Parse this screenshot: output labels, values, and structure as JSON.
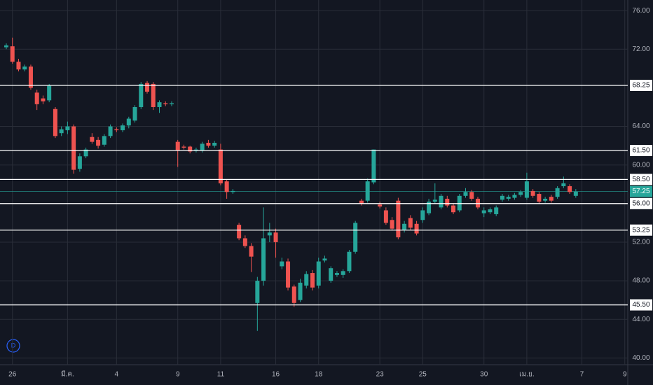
{
  "chart_data": {
    "type": "candlestick",
    "interval_badge": "D",
    "up_color": "#26a69a",
    "down_color": "#ef5350",
    "grid": true,
    "ylim": [
      39.3,
      77.1
    ],
    "yticks": [
      {
        "value": 40,
        "label": "40.00"
      },
      {
        "value": 44,
        "label": "44.00"
      },
      {
        "value": 48,
        "label": "48.00"
      },
      {
        "value": 52,
        "label": "52.00"
      },
      {
        "value": 56,
        "label": "56.00"
      },
      {
        "value": 60,
        "label": "60.00"
      },
      {
        "value": 64,
        "label": "64.00"
      },
      {
        "value": 72,
        "label": "72.00"
      },
      {
        "value": 76,
        "label": "76.00"
      }
    ],
    "levels": [
      {
        "value": 68.25,
        "label": "68.25"
      },
      {
        "value": 61.5,
        "label": "61.50"
      },
      {
        "value": 58.5,
        "label": "58.50"
      },
      {
        "value": 56,
        "label": "56.00"
      },
      {
        "value": 53.25,
        "label": "53.25"
      },
      {
        "value": 45.5,
        "label": "45.50"
      }
    ],
    "last_price": {
      "value": 57.25,
      "label": "57.25"
    },
    "categories": [
      null,
      "26",
      null,
      null,
      null,
      null,
      null,
      null,
      null,
      null,
      "มี.ค.",
      null,
      null,
      null,
      null,
      null,
      null,
      null,
      "4",
      null,
      null,
      null,
      null,
      null,
      null,
      null,
      null,
      null,
      "9",
      null,
      null,
      null,
      null,
      null,
      null,
      "11",
      null,
      null,
      null,
      null,
      null,
      null,
      null,
      null,
      "16",
      null,
      null,
      null,
      null,
      null,
      null,
      "18",
      null,
      null,
      null,
      null,
      null,
      null,
      null,
      null,
      null,
      "23",
      null,
      null,
      null,
      null,
      null,
      null,
      "25",
      null,
      null,
      null,
      null,
      null,
      null,
      null,
      null,
      null,
      "30",
      null,
      null,
      null,
      null,
      null,
      null,
      "เม.ย.",
      null,
      null,
      null,
      null,
      null,
      null,
      null,
      null,
      "7",
      null,
      null,
      null,
      null,
      null,
      null,
      "9"
    ],
    "open": [
      72.2,
      72.3,
      70.7,
      69.9,
      70.2,
      67.5,
      66.9,
      66.7,
      65.8,
      63.3,
      63.6,
      64.0,
      59.6,
      60.9,
      62.9,
      62.6,
      62.1,
      63.0,
      63.7,
      63.6,
      64.1,
      64.6,
      66.0,
      68.5,
      68.4,
      66.0,
      66.4,
      66.3,
      62.4,
      61.9,
      61.9,
      61.5,
      61.5,
      62.3,
      62.0,
      61.6,
      58.3,
      57.2,
      53.8,
      52.4,
      51.6,
      45.7,
      48.0,
      52.7,
      53.0,
      49.5,
      50.0,
      47.4,
      46.0,
      47.5,
      48.8,
      47.5,
      50.1,
      48.0,
      48.6,
      48.6,
      49.0,
      51.0,
      56.3,
      56.3,
      58.2,
      55.9,
      55.3,
      54.3,
      56.3,
      53.3,
      54.5,
      53.9,
      54.3,
      55.0,
      56.2,
      55.6,
      56.5,
      55.8,
      55.3,
      56.8,
      57.2,
      56.5,
      55.0,
      55.1,
      54.9,
      56.4,
      56.5,
      56.6,
      56.9,
      56.6,
      57.3,
      57.0,
      56.3,
      56.7,
      56.7,
      57.8,
      57.8,
      56.8,
      null,
      null,
      null,
      null,
      null,
      null,
      null,
      null
    ],
    "high": [
      72.6,
      73.2,
      71.0,
      70.4,
      70.4,
      67.8,
      67.2,
      68.4,
      66.0,
      64.0,
      64.5,
      64.2,
      61.2,
      61.8,
      63.3,
      62.9,
      63.2,
      64.2,
      63.9,
      64.3,
      65.0,
      66.2,
      68.6,
      68.7,
      68.6,
      66.7,
      66.6,
      66.6,
      62.6,
      62.1,
      62.0,
      61.8,
      62.4,
      62.6,
      62.5,
      62.2,
      58.5,
      57.5,
      54.0,
      52.7,
      51.9,
      48.4,
      55.6,
      54.0,
      53.4,
      50.4,
      50.3,
      47.6,
      48.2,
      49.0,
      49.1,
      50.4,
      50.6,
      49.5,
      49.0,
      49.2,
      51.2,
      54.2,
      56.5,
      58.6,
      61.6,
      56.2,
      55.6,
      54.6,
      56.6,
      54.2,
      54.8,
      54.2,
      55.6,
      56.5,
      58.1,
      57.0,
      56.8,
      56.0,
      57.0,
      57.6,
      57.4,
      56.7,
      55.6,
      55.6,
      55.8,
      57.0,
      56.9,
      57.1,
      57.4,
      59.2,
      57.5,
      57.2,
      56.7,
      56.9,
      57.8,
      58.8,
      58.0,
      57.5,
      null,
      null,
      null,
      null,
      null,
      null,
      null,
      null
    ],
    "low": [
      72.0,
      70.5,
      69.7,
      69.7,
      67.8,
      65.7,
      66.3,
      66.5,
      62.8,
      63.0,
      63.2,
      59.1,
      59.3,
      60.7,
      62.2,
      61.7,
      61.9,
      62.8,
      63.4,
      63.4,
      63.8,
      64.4,
      65.8,
      67.4,
      65.7,
      65.4,
      66.1,
      66.1,
      59.8,
      61.6,
      61.2,
      61.3,
      61.3,
      61.8,
      61.8,
      57.9,
      56.5,
      57.0,
      52.2,
      51.4,
      48.9,
      42.8,
      47.5,
      52.0,
      50.4,
      49.2,
      47.0,
      45.3,
      45.8,
      47.2,
      47.0,
      47.2,
      49.9,
      47.8,
      48.4,
      48.3,
      48.8,
      50.8,
      55.8,
      56.1,
      58.0,
      55.5,
      53.8,
      53.2,
      52.3,
      53.0,
      53.3,
      52.7,
      54.0,
      54.8,
      56.0,
      55.4,
      55.6,
      54.9,
      55.1,
      56.6,
      56.3,
      55.4,
      54.6,
      54.9,
      54.7,
      56.2,
      56.3,
      56.4,
      56.7,
      56.4,
      56.6,
      56.0,
      56.1,
      56.1,
      56.5,
      57.6,
      57.0,
      56.6,
      null,
      null,
      null,
      null,
      null,
      null,
      null,
      null
    ],
    "close": [
      72.4,
      70.7,
      69.9,
      70.2,
      68.0,
      66.3,
      66.6,
      68.2,
      63.0,
      63.7,
      64.0,
      59.5,
      60.9,
      61.6,
      62.4,
      62.0,
      63.0,
      64.0,
      63.6,
      64.1,
      64.8,
      66.0,
      68.4,
      67.6,
      66.0,
      66.5,
      66.3,
      66.4,
      61.5,
      61.8,
      61.4,
      61.6,
      62.2,
      62.0,
      62.3,
      58.1,
      57.2,
      57.3,
      52.4,
      51.6,
      50.5,
      48.0,
      52.4,
      53.0,
      52.0,
      50.0,
      47.3,
      45.7,
      47.8,
      48.7,
      47.3,
      50.0,
      50.3,
      49.3,
      48.8,
      49.0,
      51.0,
      54.0,
      56.0,
      58.3,
      61.6,
      55.7,
      54.0,
      53.4,
      52.5,
      53.9,
      53.5,
      52.9,
      55.3,
      56.2,
      56.4,
      56.8,
      55.8,
      55.1,
      56.8,
      57.2,
      56.5,
      55.6,
      55.3,
      55.4,
      55.6,
      56.8,
      56.7,
      56.9,
      57.2,
      58.3,
      56.8,
      56.2,
      56.5,
      56.3,
      57.6,
      58.1,
      57.2,
      57.25,
      null,
      null,
      null,
      null,
      null,
      null,
      null,
      null
    ]
  }
}
